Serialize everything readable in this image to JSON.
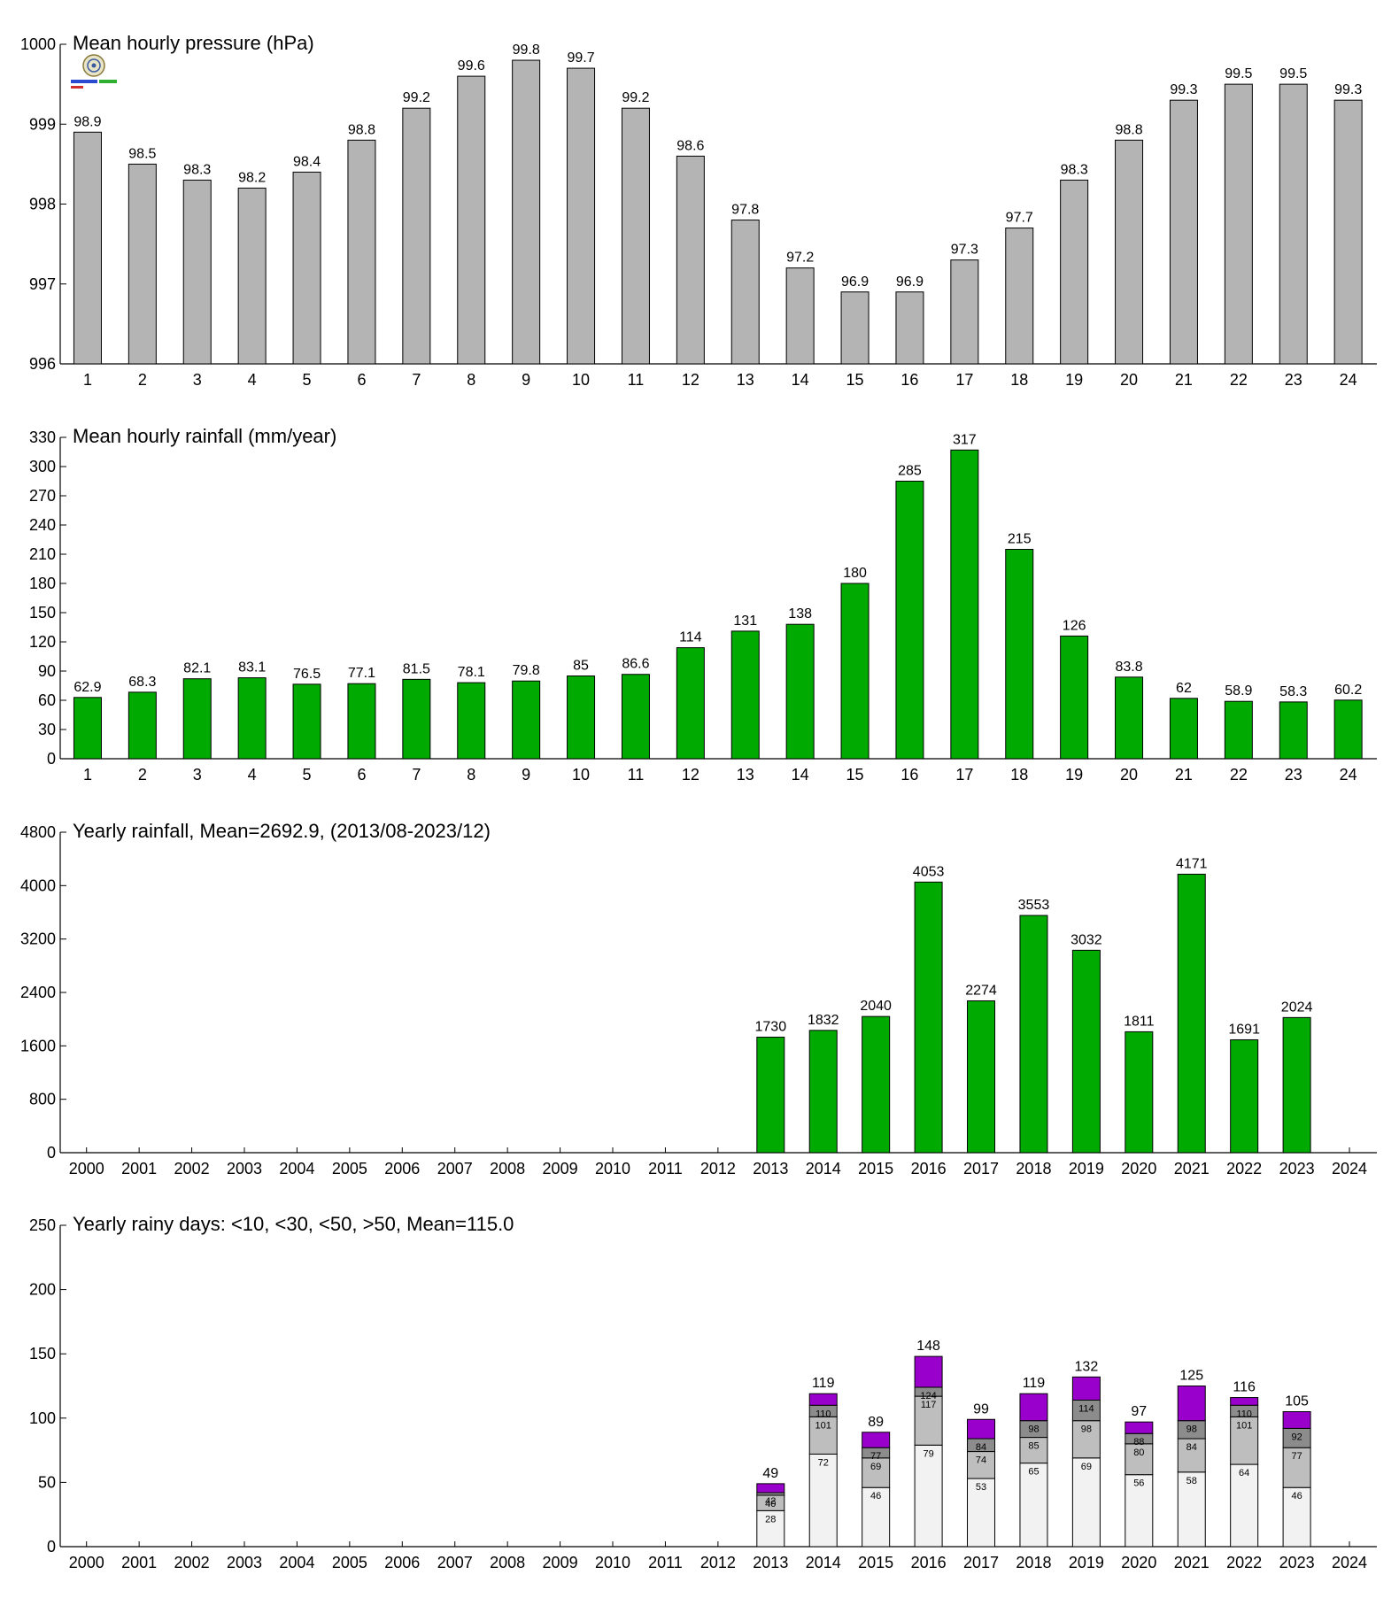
{
  "colors": {
    "pressure": "#b4b4b4",
    "rain": "#00aa00",
    "days_lt10": "#f2f2f2",
    "days_lt30": "#bebebe",
    "days_lt50": "#8c8c8c",
    "days_gt50": "#9a00cc"
  },
  "chart_data": [
    {
      "type": "bar",
      "title": "Mean hourly pressure (hPa)",
      "categories": [
        "1",
        "2",
        "3",
        "4",
        "5",
        "6",
        "7",
        "8",
        "9",
        "10",
        "11",
        "12",
        "13",
        "14",
        "15",
        "16",
        "17",
        "18",
        "19",
        "20",
        "21",
        "22",
        "23",
        "24"
      ],
      "values": [
        998.9,
        998.5,
        998.3,
        998.2,
        998.4,
        998.8,
        999.2,
        999.6,
        999.8,
        999.7,
        999.2,
        998.6,
        997.8,
        997.2,
        996.9,
        996.9,
        997.3,
        997.7,
        998.3,
        998.8,
        999.3,
        999.5,
        999.5,
        999.3
      ],
      "value_labels": [
        "98.9",
        "98.5",
        "98.3",
        "98.2",
        "98.4",
        "98.8",
        "99.2",
        "99.6",
        "99.8",
        "99.7",
        "99.2",
        "98.6",
        "97.8",
        "97.2",
        "96.9",
        "96.9",
        "97.3",
        "97.7",
        "98.3",
        "98.8",
        "99.3",
        "99.5",
        "99.5",
        "99.3"
      ],
      "ylim": [
        996,
        1000
      ],
      "yticks": [
        996,
        997,
        998,
        999,
        1000
      ],
      "xlabel": "",
      "ylabel": ""
    },
    {
      "type": "bar",
      "title": "Mean hourly rainfall (mm/year)",
      "categories": [
        "1",
        "2",
        "3",
        "4",
        "5",
        "6",
        "7",
        "8",
        "9",
        "10",
        "11",
        "12",
        "13",
        "14",
        "15",
        "16",
        "17",
        "18",
        "19",
        "20",
        "21",
        "22",
        "23",
        "24"
      ],
      "values": [
        62.9,
        68.3,
        82.1,
        83.1,
        76.5,
        77.1,
        81.5,
        78.1,
        79.8,
        85,
        86.6,
        114,
        131,
        138,
        180,
        285,
        317,
        215,
        126,
        83.8,
        62,
        58.9,
        58.3,
        60.2
      ],
      "value_labels": [
        "62.9",
        "68.3",
        "82.1",
        "83.1",
        "76.5",
        "77.1",
        "81.5",
        "78.1",
        "79.8",
        "85",
        "86.6",
        "114",
        "131",
        "138",
        "180",
        "285",
        "317",
        "215",
        "126",
        "83.8",
        "62",
        "58.9",
        "58.3",
        "60.2"
      ],
      "ylim": [
        0,
        330
      ],
      "yticks": [
        0,
        30,
        60,
        90,
        120,
        150,
        180,
        210,
        240,
        270,
        300,
        330
      ],
      "xlabel": "",
      "ylabel": ""
    },
    {
      "type": "bar",
      "title": "Yearly rainfall, Mean=2692.9, (2013/08-2023/12)",
      "categories": [
        "2000",
        "2001",
        "2002",
        "2003",
        "2004",
        "2005",
        "2006",
        "2007",
        "2008",
        "2009",
        "2010",
        "2011",
        "2012",
        "2013",
        "2014",
        "2015",
        "2016",
        "2017",
        "2018",
        "2019",
        "2020",
        "2021",
        "2022",
        "2023",
        "2024"
      ],
      "values": [
        null,
        null,
        null,
        null,
        null,
        null,
        null,
        null,
        null,
        null,
        null,
        null,
        null,
        1730,
        1832,
        2040,
        4053,
        2274,
        3553,
        3032,
        1811,
        4171,
        1691,
        2024,
        null
      ],
      "value_labels": [
        "",
        "",
        "",
        "",
        "",
        "",
        "",
        "",
        "",
        "",
        "",
        "",
        "",
        "1730",
        "1832",
        "2040",
        "4053",
        "2274",
        "3553",
        "3032",
        "1811",
        "4171",
        "1691",
        "2024",
        ""
      ],
      "ylim": [
        0,
        4800
      ],
      "yticks": [
        0,
        800,
        1600,
        2400,
        3200,
        4000,
        4800
      ],
      "xlabel": "",
      "ylabel": ""
    },
    {
      "type": "bar",
      "stacked": true,
      "title": "Yearly rainy days: <10, <30, <50, >50, Mean=115.0",
      "categories": [
        "2000",
        "2001",
        "2002",
        "2003",
        "2004",
        "2005",
        "2006",
        "2007",
        "2008",
        "2009",
        "2010",
        "2011",
        "2012",
        "2013",
        "2014",
        "2015",
        "2016",
        "2017",
        "2018",
        "2019",
        "2020",
        "2021",
        "2022",
        "2023",
        "2024"
      ],
      "cumulative": {
        "lt10": [
          null,
          null,
          null,
          null,
          null,
          null,
          null,
          null,
          null,
          null,
          null,
          null,
          null,
          28,
          72,
          46,
          79,
          53,
          65,
          69,
          56,
          58,
          64,
          46,
          null
        ],
        "lt30": [
          null,
          null,
          null,
          null,
          null,
          null,
          null,
          null,
          null,
          null,
          null,
          null,
          null,
          40,
          101,
          69,
          117,
          74,
          85,
          98,
          80,
          84,
          101,
          77,
          null
        ],
        "lt50": [
          null,
          null,
          null,
          null,
          null,
          null,
          null,
          null,
          null,
          null,
          null,
          null,
          null,
          42,
          110,
          77,
          124,
          84,
          98,
          114,
          88,
          98,
          110,
          92,
          null
        ],
        "total": [
          null,
          null,
          null,
          null,
          null,
          null,
          null,
          null,
          null,
          null,
          null,
          null,
          null,
          49,
          119,
          89,
          148,
          99,
          119,
          132,
          97,
          125,
          116,
          105,
          null
        ]
      },
      "ylim": [
        0,
        250
      ],
      "yticks": [
        0,
        50,
        100,
        150,
        200,
        250
      ],
      "xlabel": "",
      "ylabel": ""
    }
  ]
}
